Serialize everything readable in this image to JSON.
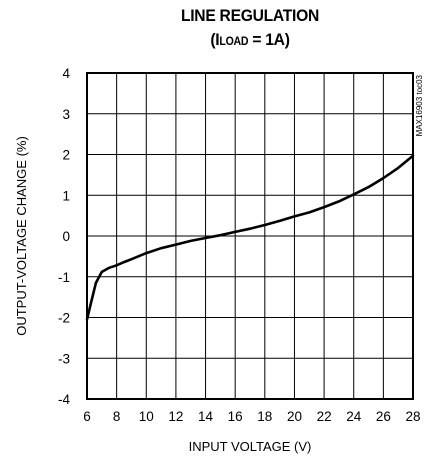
{
  "chart_data": {
    "type": "line",
    "title_main": "LINE REGULATION",
    "title_sub_prefix": "(I",
    "title_sub_script": "LOAD",
    "title_sub_suffix": " = 1A)",
    "xlabel": "INPUT VOLTAGE (V)",
    "ylabel": "OUTPUT-VOLTAGE CHANGE (%)",
    "side_note": "MAX16903 toc03",
    "xlim": [
      6,
      28
    ],
    "ylim": [
      -4,
      4
    ],
    "x_ticks": [
      6,
      8,
      10,
      12,
      14,
      16,
      18,
      20,
      22,
      24,
      26,
      28
    ],
    "y_ticks": [
      4,
      3,
      2,
      1,
      0,
      -1,
      -2,
      -3,
      -4
    ],
    "grid": true,
    "series": [
      {
        "color": "#000000",
        "x": [
          6.0,
          6.3,
          6.6,
          7.0,
          7.5,
          8.0,
          8.5,
          9.0,
          10.0,
          11.0,
          12.0,
          13.0,
          14.0,
          15.0,
          16.0,
          17.0,
          18.0,
          19.0,
          20.0,
          21.0,
          22.0,
          23.0,
          24.0,
          25.0,
          26.0,
          27.0,
          28.0
        ],
        "y": [
          -2.05,
          -1.6,
          -1.15,
          -0.88,
          -0.78,
          -0.72,
          -0.64,
          -0.57,
          -0.42,
          -0.3,
          -0.21,
          -0.12,
          -0.05,
          0.02,
          0.1,
          0.18,
          0.27,
          0.37,
          0.48,
          0.58,
          0.71,
          0.85,
          1.02,
          1.2,
          1.42,
          1.67,
          1.97
        ]
      }
    ]
  }
}
